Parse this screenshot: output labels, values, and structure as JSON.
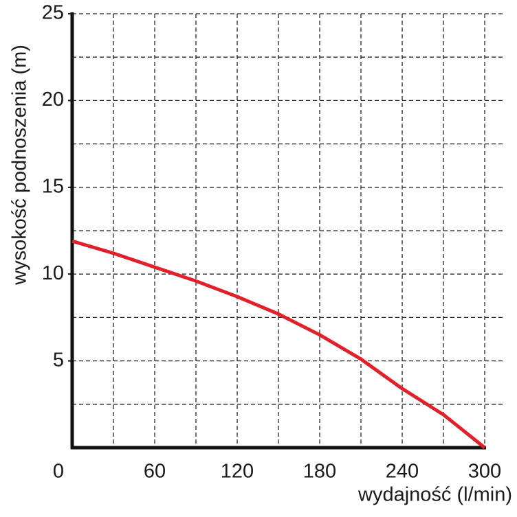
{
  "chart_data": {
    "type": "line",
    "x_label": "wydajność (l/min)",
    "y_label": "wysokość podnoszenia (m)",
    "xlim": [
      0,
      315
    ],
    "ylim": [
      0,
      25
    ],
    "xticks": [
      0,
      60,
      120,
      180,
      240,
      300
    ],
    "yticks": [
      5,
      10,
      15,
      20,
      25
    ],
    "xgrid": [
      30,
      60,
      90,
      120,
      150,
      180,
      210,
      240,
      270,
      300
    ],
    "ygrid": [
      2.5,
      5,
      7.5,
      10,
      12.5,
      15,
      17.5,
      20,
      22.5,
      25
    ],
    "grid": true,
    "x": [
      0,
      30,
      60,
      90,
      120,
      150,
      180,
      210,
      240,
      270,
      300
    ],
    "series": [
      {
        "color": "#e0202a",
        "values": [
          11.9,
          11.2,
          10.4,
          9.6,
          8.7,
          7.7,
          6.5,
          5.1,
          3.4,
          1.9,
          0
        ]
      }
    ]
  }
}
